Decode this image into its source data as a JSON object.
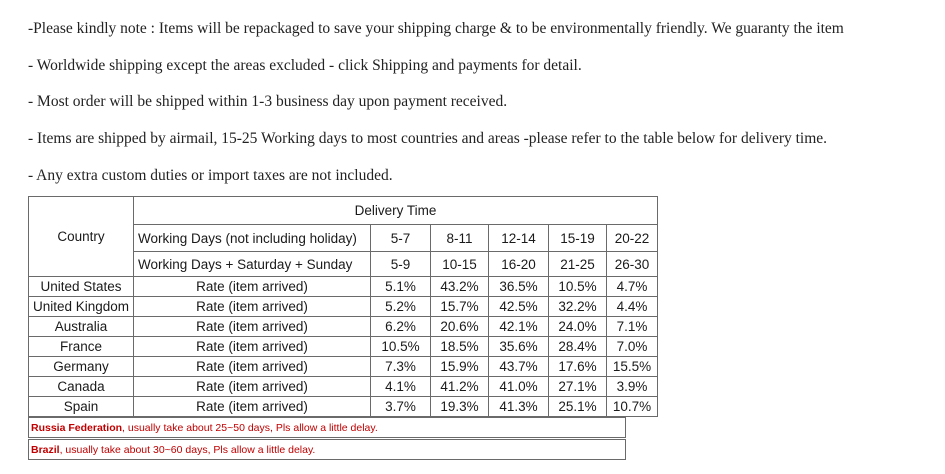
{
  "notes": [
    "-Please kindly note : Items will be repackaged to save your shipping charge & to be environmentally friendly. We guaranty the item",
    "- Worldwide shipping except the areas excluded - click Shipping and payments for detail.",
    "- Most order will be shipped within 1-3 business day upon payment received.",
    "- Items are shipped by airmail, 15-25 Working days to most countries and areas -please refer to the table below for delivery time.",
    "- Any extra custom duties or import taxes are not included."
  ],
  "table": {
    "country_header": "Country",
    "delivery_header": "Delivery Time",
    "header_rows": [
      [
        "Working Days (not including holiday)",
        "5-7",
        "8-11",
        "12-14",
        "15-19",
        "20-22"
      ],
      [
        "Working Days + Saturday + Sunday",
        "5-9",
        "10-15",
        "16-20",
        "21-25",
        "26-30"
      ]
    ],
    "rows": [
      [
        "United States",
        "Rate (item arrived)",
        "5.1%",
        "43.2%",
        "36.5%",
        "10.5%",
        "4.7%"
      ],
      [
        "United Kingdom",
        "Rate (item arrived)",
        "5.2%",
        "15.7%",
        "42.5%",
        "32.2%",
        "4.4%"
      ],
      [
        "Australia",
        "Rate (item arrived)",
        "6.2%",
        "20.6%",
        "42.1%",
        "24.0%",
        "7.1%"
      ],
      [
        "France",
        "Rate (item arrived)",
        "10.5%",
        "18.5%",
        "35.6%",
        "28.4%",
        "7.0%"
      ],
      [
        "Germany",
        "Rate (item arrived)",
        "7.3%",
        "15.9%",
        "43.7%",
        "17.6%",
        "15.5%"
      ],
      [
        "Canada",
        "Rate (item arrived)",
        "4.1%",
        "41.2%",
        "41.0%",
        "27.1%",
        "3.9%"
      ],
      [
        "Spain",
        "Rate (item arrived)",
        "3.7%",
        "19.3%",
        "41.3%",
        "25.1%",
        "10.7%"
      ]
    ]
  },
  "footnotes": [
    {
      "country": "Russia Federation",
      "text": ", usually take about 25~50 days, Pls allow a little delay."
    },
    {
      "country": "Brazil",
      "text": ", usually take about 30~60 days, Pls allow a little delay."
    }
  ]
}
